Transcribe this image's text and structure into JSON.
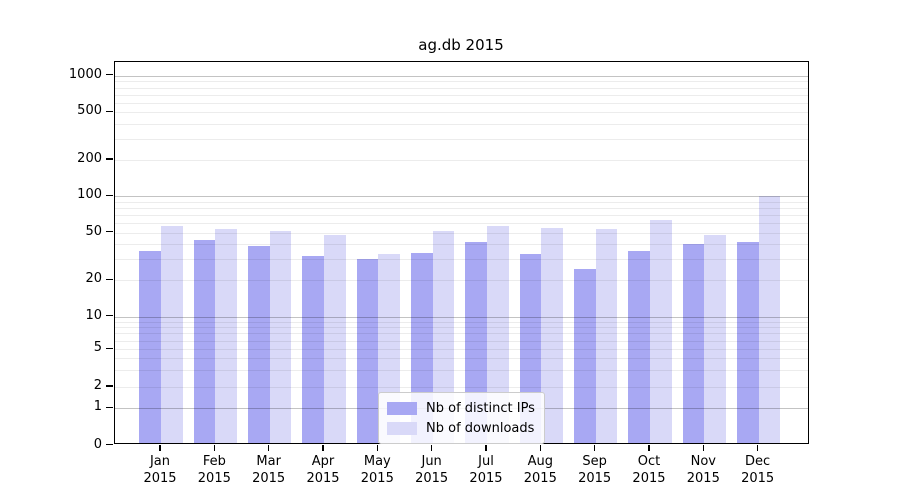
{
  "chart_data": {
    "type": "bar",
    "title": "ag.db 2015",
    "categories": [
      "Jan",
      "Feb",
      "Mar",
      "Apr",
      "May",
      "Jun",
      "Jul",
      "Aug",
      "Sep",
      "Oct",
      "Nov",
      "Dec"
    ],
    "category_year": "2015",
    "series": [
      {
        "name": "Nb of distinct IPs",
        "color": "#a8a8f3",
        "values": [
          35,
          43,
          39,
          32,
          30,
          34,
          42,
          33,
          25,
          35,
          40,
          42
        ]
      },
      {
        "name": "Nb of downloads",
        "color": "#d9d9f8",
        "values": [
          57,
          53,
          51,
          48,
          33,
          51,
          57,
          55,
          54,
          64,
          48,
          100
        ]
      }
    ],
    "yscale": "symlog",
    "yticks": [
      0,
      1,
      2,
      5,
      10,
      20,
      50,
      100,
      200,
      500,
      1000
    ],
    "ylim": [
      0,
      1300
    ],
    "grid": true,
    "legend_position": "lower center",
    "xlabel": "",
    "ylabel": ""
  }
}
